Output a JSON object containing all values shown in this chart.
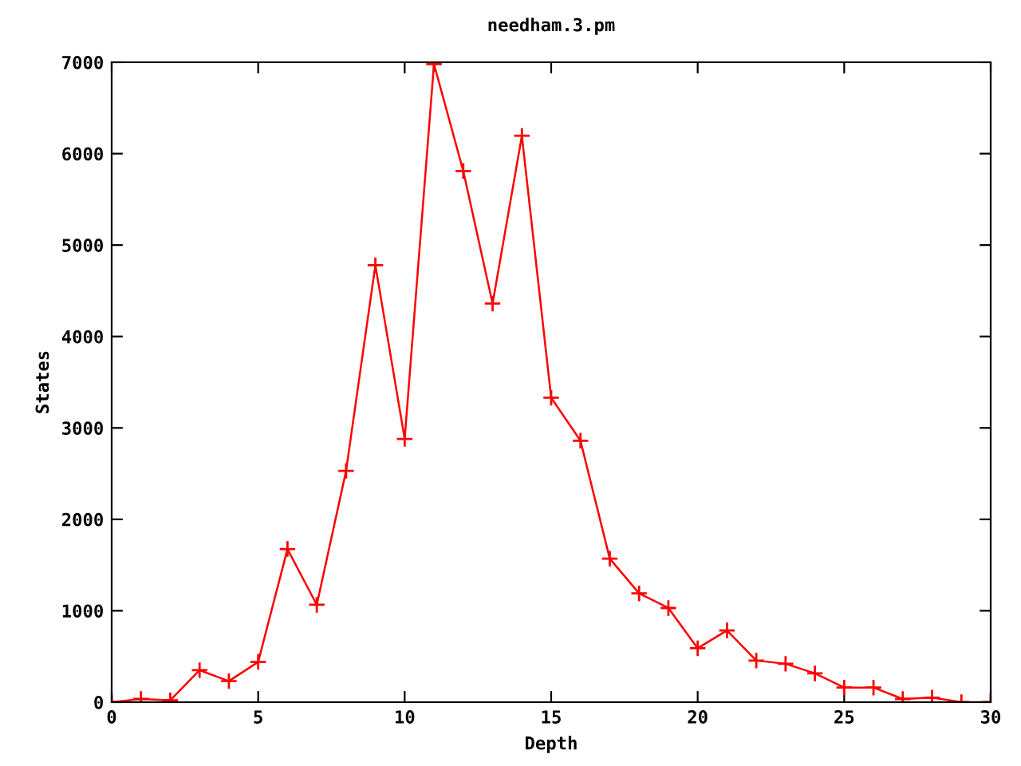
{
  "chart_data": {
    "type": "line",
    "title": "needham.3.pm",
    "xlabel": "Depth",
    "ylabel": "States",
    "x": [
      0,
      1,
      2,
      3,
      4,
      5,
      6,
      7,
      8,
      9,
      10,
      11,
      12,
      13,
      14,
      15,
      16,
      17,
      18,
      19,
      20,
      21,
      22,
      23,
      24,
      25,
      26,
      27,
      28,
      29,
      30
    ],
    "series": [
      {
        "color": "#ff0000",
        "values": [
          0,
          35,
          20,
          350,
          230,
          440,
          1675,
          1065,
          2530,
          4780,
          2880,
          6980,
          5810,
          4360,
          6195,
          3330,
          2860,
          1570,
          1190,
          1030,
          590,
          785,
          455,
          420,
          315,
          160,
          160,
          35,
          50,
          0,
          0
        ]
      }
    ],
    "xlim": [
      0,
      30
    ],
    "xticks": [
      0,
      5,
      10,
      15,
      20,
      25,
      30
    ],
    "ylim": [
      0,
      7000
    ],
    "yticks": [
      0,
      1000,
      2000,
      3000,
      4000,
      5000,
      6000,
      7000
    ],
    "grid": false,
    "legend": false,
    "marker": "cross",
    "line_style": "solid"
  }
}
